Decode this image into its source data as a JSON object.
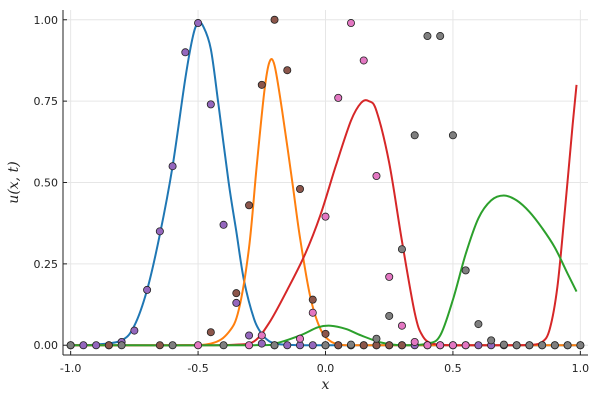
{
  "chart_data": {
    "type": "line",
    "xlabel": "x",
    "ylabel": "u(x, t)",
    "xlim": [
      -1.03,
      1.03
    ],
    "ylim": [
      -0.03,
      1.03
    ],
    "grid": true,
    "legend": "none",
    "x_ticks": [
      {
        "value": -1.0,
        "label": "-1.0"
      },
      {
        "value": -0.5,
        "label": "-0.5"
      },
      {
        "value": 0.0,
        "label": "0.0"
      },
      {
        "value": 0.5,
        "label": "0.5"
      },
      {
        "value": 1.0,
        "label": "1.0"
      }
    ],
    "y_ticks": [
      {
        "value": 0.0,
        "label": "0.00"
      },
      {
        "value": 0.25,
        "label": "0.25"
      },
      {
        "value": 0.5,
        "label": "0.50"
      },
      {
        "value": 0.75,
        "label": "0.75"
      },
      {
        "value": 1.0,
        "label": "1.00"
      }
    ],
    "line_series": [
      {
        "color": "#1f77b4",
        "x": [
          -1.0,
          -0.9,
          -0.8,
          -0.75,
          -0.7,
          -0.65,
          -0.6,
          -0.55,
          -0.52,
          -0.5,
          -0.48,
          -0.45,
          -0.42,
          -0.38,
          -0.35,
          -0.32,
          -0.28,
          -0.25,
          -0.22,
          -0.18,
          -0.1,
          0.0,
          0.2,
          0.5,
          0.8,
          1.0
        ],
        "y": [
          0.0,
          0.002,
          0.015,
          0.06,
          0.17,
          0.34,
          0.55,
          0.82,
          0.95,
          0.99,
          0.98,
          0.91,
          0.74,
          0.5,
          0.35,
          0.2,
          0.08,
          0.035,
          0.012,
          0.003,
          0.0,
          0.0,
          0.0,
          0.0,
          0.0,
          0.0
        ]
      },
      {
        "color": "#ff7f0e",
        "x": [
          -1.0,
          -0.6,
          -0.45,
          -0.38,
          -0.34,
          -0.3,
          -0.27,
          -0.24,
          -0.22,
          -0.2,
          -0.17,
          -0.13,
          -0.1,
          -0.06,
          -0.02,
          0.02,
          0.06,
          0.1,
          0.3,
          0.6,
          1.0
        ],
        "y": [
          0.0,
          0.0,
          0.005,
          0.04,
          0.11,
          0.3,
          0.55,
          0.78,
          0.87,
          0.86,
          0.72,
          0.5,
          0.33,
          0.15,
          0.05,
          0.012,
          0.002,
          0.0,
          0.0,
          0.0,
          0.0
        ]
      },
      {
        "color": "#d62728",
        "x": [
          -1.0,
          -0.5,
          -0.35,
          -0.28,
          -0.22,
          -0.15,
          -0.08,
          -0.02,
          0.04,
          0.1,
          0.14,
          0.17,
          0.2,
          0.25,
          0.3,
          0.35,
          0.38,
          0.42,
          0.5,
          0.6,
          0.7,
          0.8,
          0.85,
          0.88,
          0.91,
          0.94,
          0.97,
          0.985
        ],
        "y": [
          0.0,
          0.0,
          0.002,
          0.012,
          0.07,
          0.17,
          0.28,
          0.4,
          0.55,
          0.69,
          0.745,
          0.75,
          0.72,
          0.56,
          0.32,
          0.1,
          0.03,
          0.005,
          0.0,
          0.0,
          0.0,
          0.001,
          0.01,
          0.05,
          0.18,
          0.42,
          0.68,
          0.8
        ]
      },
      {
        "color": "#2ca02c",
        "x": [
          -1.0,
          -0.3,
          -0.2,
          -0.1,
          -0.03,
          0.02,
          0.08,
          0.14,
          0.22,
          0.3,
          0.4,
          0.45,
          0.5,
          0.55,
          0.6,
          0.65,
          0.7,
          0.75,
          0.8,
          0.85,
          0.9,
          0.95,
          0.985
        ],
        "y": [
          0.0,
          0.0,
          0.005,
          0.03,
          0.055,
          0.06,
          0.05,
          0.03,
          0.008,
          0.0,
          0.005,
          0.03,
          0.14,
          0.28,
          0.39,
          0.445,
          0.46,
          0.445,
          0.41,
          0.36,
          0.3,
          0.22,
          0.165
        ]
      }
    ],
    "scatter_series": [
      {
        "color": "#9467bd",
        "x": [
          -1.0,
          -0.95,
          -0.9,
          -0.85,
          -0.8,
          -0.75,
          -0.7,
          -0.65,
          -0.6,
          -0.55,
          -0.5,
          -0.45,
          -0.4,
          -0.35,
          -0.3,
          -0.25,
          -0.2,
          -0.15,
          -0.1,
          -0.05,
          0.0,
          0.05,
          0.1,
          0.15,
          0.2,
          0.25,
          0.3,
          0.35,
          0.4,
          0.45,
          0.5,
          0.55,
          0.6,
          0.65,
          0.7,
          0.75,
          0.8,
          0.85,
          0.9,
          0.95,
          1.0
        ],
        "y": [
          0.0,
          0.0,
          0.0,
          0.0,
          0.01,
          0.045,
          0.17,
          0.35,
          0.55,
          0.9,
          0.99,
          0.74,
          0.37,
          0.13,
          0.03,
          0.005,
          0.0,
          0.0,
          0.0,
          0.0,
          0.0,
          0.0,
          0.0,
          0.0,
          0.0,
          0.0,
          0.0,
          0.0,
          0.0,
          0.0,
          0.0,
          0.0,
          0.0,
          0.0,
          0.0,
          0.0,
          0.0,
          0.0,
          0.0,
          0.0,
          0.0
        ]
      },
      {
        "color": "#8c564b",
        "x": [
          -0.85,
          -0.65,
          -0.45,
          -0.35,
          -0.3,
          -0.25,
          -0.2,
          -0.15,
          -0.1,
          -0.05,
          0.0,
          0.05,
          0.1,
          0.15,
          0.2,
          0.25,
          0.3
        ],
        "y": [
          0.0,
          0.0,
          0.04,
          0.16,
          0.43,
          0.8,
          1.0,
          0.845,
          0.48,
          0.14,
          0.035,
          0.0,
          0.0,
          0.0,
          0.0,
          0.0,
          0.0
        ]
      },
      {
        "color": "#e377c2",
        "x": [
          -0.5,
          -0.3,
          -0.25,
          -0.1,
          -0.05,
          0.0,
          0.05,
          0.1,
          0.15,
          0.2,
          0.25,
          0.3,
          0.35,
          0.4,
          0.45,
          0.5,
          0.55
        ],
        "y": [
          0.0,
          0.0,
          0.03,
          0.02,
          0.1,
          0.395,
          0.76,
          0.99,
          0.875,
          0.52,
          0.21,
          0.06,
          0.01,
          0.0,
          0.0,
          0.0,
          0.0
        ]
      },
      {
        "color": "#7f7f7f",
        "x": [
          -1.0,
          -0.8,
          -0.6,
          -0.4,
          -0.2,
          0.0,
          0.1,
          0.2,
          0.25,
          0.3,
          0.35,
          0.4,
          0.45,
          0.5,
          0.55,
          0.6,
          0.65,
          0.7,
          0.75,
          0.8,
          0.85,
          0.9,
          0.95,
          1.0
        ],
        "y": [
          0.0,
          0.0,
          0.0,
          0.0,
          0.0,
          0.0,
          0.002,
          0.02,
          0.09,
          0.295,
          0.645,
          0.95,
          0.95,
          0.645,
          0.23,
          0.065,
          0.015,
          0.002,
          0.0,
          0.0,
          0.0,
          0.0,
          0.0,
          0.0
        ]
      }
    ]
  }
}
